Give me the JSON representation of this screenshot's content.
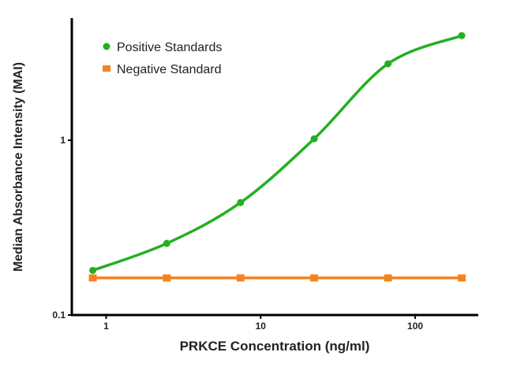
{
  "chart_data": {
    "type": "line",
    "title": "",
    "xlabel": "PRKCE Concentration (ng/ml)",
    "ylabel": "Median Absorbance Intensity (MAI)",
    "xscale": "log",
    "yscale": "log",
    "xlim": [
      0.6,
      250
    ],
    "ylim": [
      0.1,
      5
    ],
    "xticks": [
      {
        "value": 1,
        "label": "1"
      },
      {
        "value": 10,
        "label": "10"
      },
      {
        "value": 100,
        "label": "100"
      }
    ],
    "yticks": [
      {
        "value": 0.1,
        "label": "0.1"
      },
      {
        "value": 1,
        "label": "1"
      }
    ],
    "grid": false,
    "legend_position": "top-left",
    "x": [
      0.82,
      2.47,
      7.41,
      22.2,
      66.7,
      200
    ],
    "series": [
      {
        "name": "Positive Standards",
        "color": "#22b022",
        "marker": "circle",
        "values": [
          0.18,
          0.257,
          0.44,
          1.02,
          2.74,
          3.97
        ]
      },
      {
        "name": "Negative Standard",
        "color": "#f5821f",
        "marker": "square",
        "values": [
          0.163,
          0.163,
          0.163,
          0.163,
          0.163,
          0.163
        ]
      }
    ]
  }
}
